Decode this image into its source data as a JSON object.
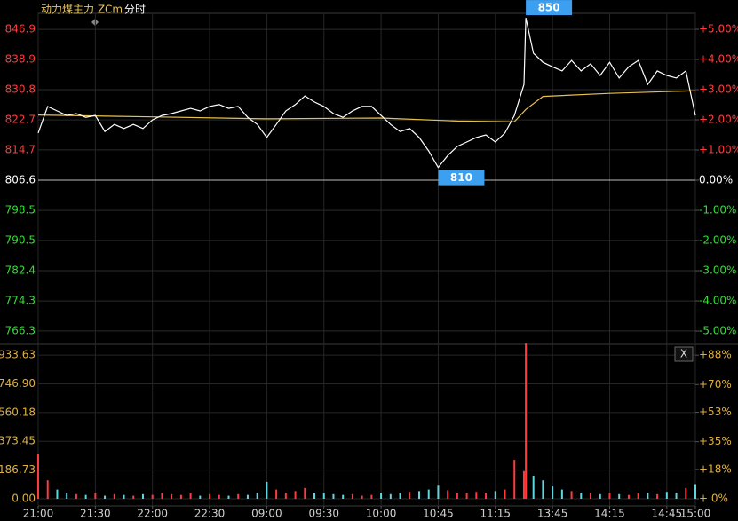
{
  "chart_data": [
    {
      "type": "line",
      "title": "动力煤主力 ZCm",
      "subtitle": "分时",
      "xlim": [
        0,
        345
      ],
      "ylim": [
        762.7,
        851.2
      ],
      "yticks": [
        846.9,
        838.9,
        830.8,
        822.7,
        814.7,
        806.6,
        798.5,
        790.5,
        782.4,
        774.3,
        766.3
      ],
      "y2lim": [
        -5.44,
        5.53
      ],
      "y2ticks": [
        {
          "value": 5,
          "label": "+5.00%"
        },
        {
          "value": 4,
          "label": "+4.00%"
        },
        {
          "value": 3,
          "label": "+3.00%"
        },
        {
          "value": 2,
          "label": "+2.00%"
        },
        {
          "value": 1,
          "label": "+1.00%"
        },
        {
          "value": 0,
          "label": "0.00%"
        },
        {
          "value": -1,
          "label": "-1.00%"
        },
        {
          "value": -2,
          "label": "-2.00%"
        },
        {
          "value": -3,
          "label": "-3.00%"
        },
        {
          "value": -4,
          "label": "-4.00%"
        },
        {
          "value": -5,
          "label": "-5.00%"
        }
      ],
      "up_color": "#ff3b3b",
      "down_color": "#33dd33",
      "base_color": "#ffffff",
      "grid": true,
      "series": [
        {
          "color": "#ffffff",
          "x": [
            0,
            5,
            10,
            15,
            20,
            25,
            30,
            35,
            40,
            45,
            50,
            55,
            60,
            65,
            70,
            75,
            80,
            85,
            90,
            95,
            100,
            105,
            110,
            115,
            120,
            125,
            130,
            135,
            140,
            145,
            150,
            155,
            160,
            165,
            170,
            175,
            180,
            185,
            190,
            195,
            200,
            205,
            210,
            215,
            220,
            225,
            230,
            235,
            240,
            245,
            250,
            255,
            256,
            260,
            265,
            270,
            275,
            280,
            285,
            290,
            295,
            300,
            305,
            310,
            315,
            320,
            325,
            330,
            335,
            340,
            345
          ],
          "values": [
            819.2,
            826.3,
            825.1,
            823.9,
            824.4,
            823.4,
            823.9,
            819.6,
            821.5,
            820.4,
            821.5,
            820.4,
            822.7,
            823.9,
            824.4,
            825.1,
            825.8,
            825.1,
            826.3,
            826.8,
            825.8,
            826.3,
            823.4,
            821.5,
            818.0,
            821.5,
            825.1,
            826.8,
            829.1,
            827.5,
            826.3,
            824.4,
            823.4,
            825.1,
            826.3,
            826.3,
            823.9,
            821.5,
            819.6,
            820.4,
            818.0,
            814.4,
            810.0,
            813.2,
            815.6,
            816.8,
            818.0,
            818.7,
            816.8,
            819.2,
            823.9,
            832.2,
            850.0,
            840.5,
            838.1,
            836.9,
            835.8,
            838.6,
            835.8,
            837.7,
            834.6,
            838.1,
            833.9,
            836.9,
            838.6,
            832.2,
            835.8,
            834.6,
            833.9,
            835.8,
            823.9
          ]
        },
        {
          "color": "#e6c24a",
          "x": [
            0,
            60,
            120,
            180,
            220,
            250,
            256,
            265,
            300,
            345
          ],
          "values": [
            824.0,
            823.5,
            823.0,
            823.2,
            822.4,
            822.2,
            825.5,
            829.0,
            829.8,
            830.5
          ]
        }
      ],
      "annotations": [
        {
          "text": "850",
          "x": 256,
          "y": 850.0,
          "place": "above"
        },
        {
          "text": "810",
          "x": 210,
          "y": 810.0,
          "place": "below"
        }
      ]
    },
    {
      "type": "bar",
      "xlim": [
        0,
        345
      ],
      "xticks": [
        {
          "value": 0,
          "label": "21:00"
        },
        {
          "value": 30,
          "label": "21:30"
        },
        {
          "value": 60,
          "label": "22:00"
        },
        {
          "value": 90,
          "label": "22:30"
        },
        {
          "value": 120,
          "label": "09:00"
        },
        {
          "value": 150,
          "label": "09:30"
        },
        {
          "value": 180,
          "label": "10:00"
        },
        {
          "value": 210,
          "label": "10:45"
        },
        {
          "value": 240,
          "label": "11:15"
        },
        {
          "value": 270,
          "label": "13:45"
        },
        {
          "value": 300,
          "label": "14:15"
        },
        {
          "value": 330,
          "label": "14:45"
        },
        {
          "value": 345,
          "label": "15:00"
        }
      ],
      "ylim": [
        0,
        1015
      ],
      "yticks": [
        933.63,
        {
          "value": 746.9,
          "label": "746.90"
        },
        560.18,
        373.45,
        186.73,
        {
          "value": 0,
          "label": "0.00"
        }
      ],
      "y2lim": [
        0,
        95.7
      ],
      "y2ticks": [
        {
          "value": 88,
          "label": "+88%"
        },
        {
          "value": 70,
          "label": "+70%"
        },
        {
          "value": 53,
          "label": "+53%"
        },
        {
          "value": 35,
          "label": "+35%"
        },
        {
          "value": 18,
          "label": "+18%"
        },
        {
          "value": 0,
          "label": "+ 0%"
        }
      ],
      "up_color": "#ff3b3b",
      "down_color": "#5fd7e0",
      "tick_color": "#e0b040",
      "close_button": "X",
      "x": [
        0,
        5,
        10,
        15,
        20,
        25,
        30,
        35,
        40,
        45,
        50,
        55,
        60,
        65,
        70,
        75,
        80,
        85,
        90,
        95,
        100,
        105,
        110,
        115,
        120,
        125,
        130,
        135,
        140,
        145,
        150,
        155,
        160,
        165,
        170,
        175,
        180,
        185,
        190,
        195,
        200,
        205,
        210,
        215,
        220,
        225,
        230,
        235,
        240,
        245,
        250,
        255,
        256,
        260,
        265,
        270,
        275,
        280,
        285,
        290,
        295,
        300,
        305,
        310,
        315,
        320,
        325,
        330,
        335,
        340,
        345
      ],
      "values": [
        288,
        120,
        60,
        40,
        30,
        25,
        35,
        20,
        30,
        25,
        20,
        30,
        25,
        40,
        30,
        25,
        35,
        20,
        30,
        25,
        20,
        30,
        25,
        40,
        110,
        60,
        40,
        50,
        70,
        40,
        35,
        30,
        25,
        30,
        20,
        25,
        40,
        30,
        35,
        45,
        50,
        60,
        85,
        55,
        40,
        35,
        45,
        40,
        50,
        60,
        253,
        180,
        1010,
        150,
        120,
        80,
        60,
        50,
        40,
        35,
        30,
        40,
        30,
        25,
        35,
        40,
        30,
        45,
        40,
        70,
        95
      ]
    }
  ]
}
